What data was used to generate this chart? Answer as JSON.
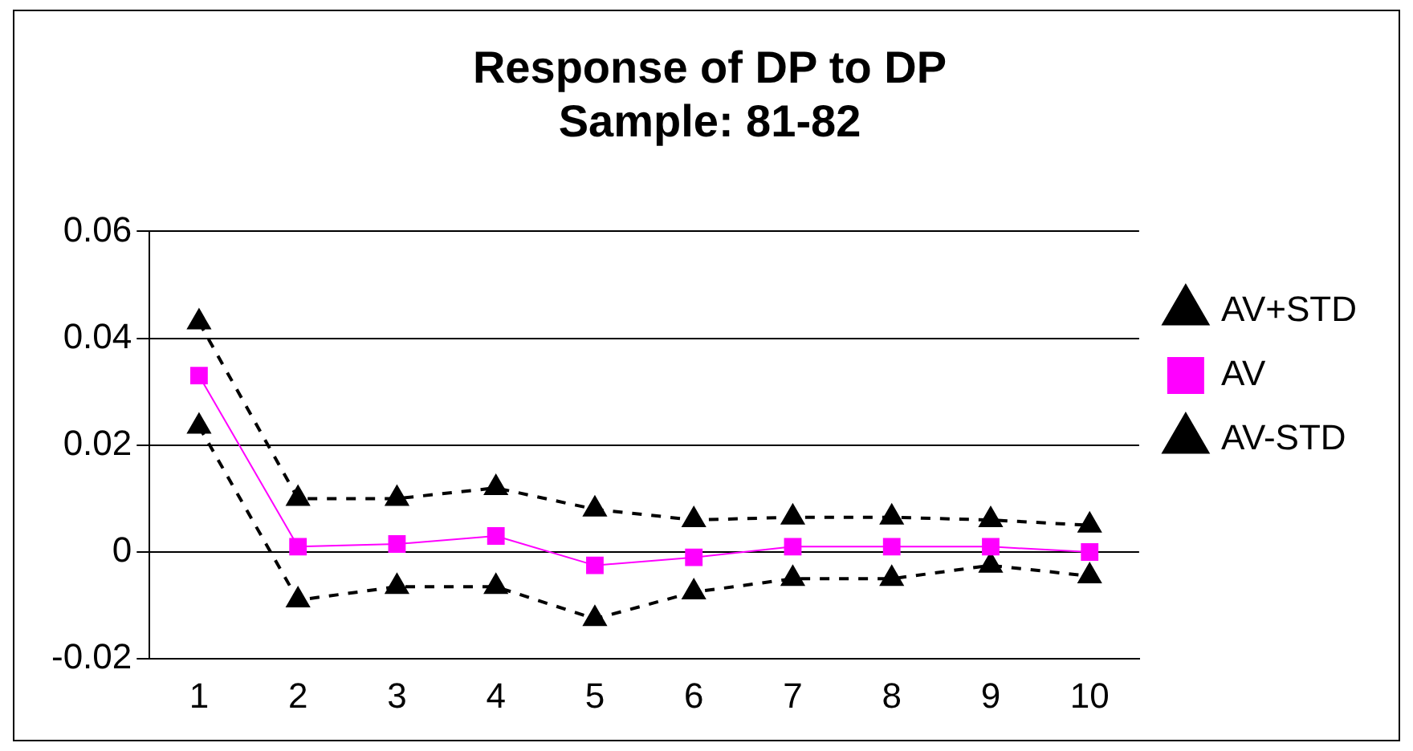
{
  "chart_data": {
    "type": "line",
    "title": "Response of DP to DP",
    "subtitle": "Sample: 81-82",
    "categories": [
      "1",
      "2",
      "3",
      "4",
      "5",
      "6",
      "7",
      "8",
      "9",
      "10"
    ],
    "series": [
      {
        "name": "AV+STD",
        "color": "#000000",
        "marker": "triangle",
        "line_style": "dashed",
        "values": [
          0.043,
          0.01,
          0.01,
          0.012,
          0.008,
          0.006,
          0.0065,
          0.0065,
          0.006,
          0.005
        ]
      },
      {
        "name": "AV",
        "color": "#ff00ff",
        "marker": "square",
        "line_style": "solid",
        "values": [
          0.033,
          0.001,
          0.0015,
          0.003,
          -0.0025,
          -0.001,
          0.001,
          0.001,
          0.001,
          0
        ]
      },
      {
        "name": "AV-STD",
        "color": "#000000",
        "marker": "triangle",
        "line_style": "dashed",
        "values": [
          0.0235,
          -0.009,
          -0.0065,
          -0.0065,
          -0.0125,
          -0.0075,
          -0.005,
          -0.005,
          -0.0025,
          -0.0045
        ]
      }
    ],
    "ylim": [
      -0.02,
      0.06
    ],
    "yticks": [
      -0.02,
      0,
      0.02,
      0.04,
      0.06
    ],
    "grid": "y",
    "legend": "right"
  }
}
